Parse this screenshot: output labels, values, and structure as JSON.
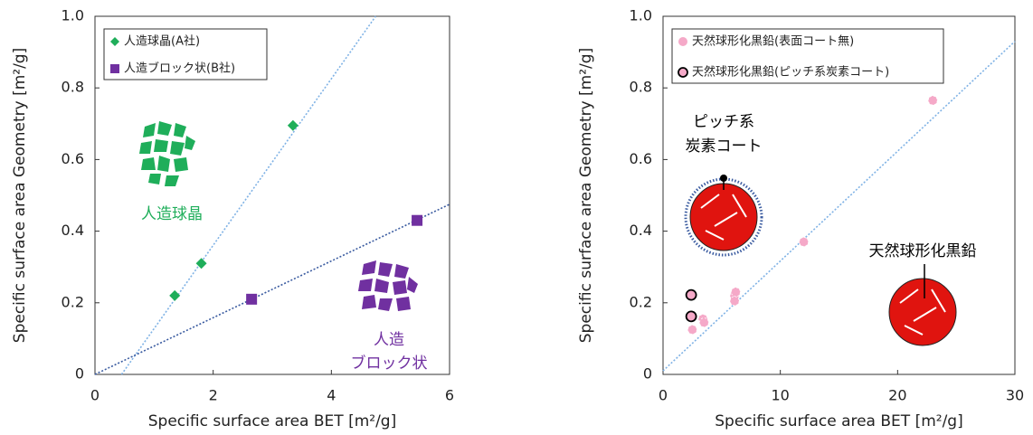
{
  "chart_data": [
    {
      "type": "scatter",
      "xlabel": "Specific surface area BET [m²/g]",
      "ylabel": "Specific surface area Geometry [m²/g]",
      "xlim": [
        0,
        6
      ],
      "ylim": [
        0,
        1
      ],
      "xticks": [
        0,
        2,
        4,
        6
      ],
      "yticks": [
        0,
        0.2,
        0.4,
        0.6,
        0.8,
        {
          "value": 1,
          "label": "1.0"
        }
      ],
      "legend": "upper left",
      "series": [
        {
          "name": "人造球晶(A社)",
          "color": "#1fae5a",
          "marker": "diamond",
          "x": [
            1.35,
            1.8,
            3.35
          ],
          "values": [
            0.22,
            0.31,
            0.695
          ]
        },
        {
          "name": "人造ブロック状(B社)",
          "color": "#7030a0",
          "marker": "square",
          "x": [
            2.65,
            5.45
          ],
          "values": [
            0.21,
            0.43
          ]
        }
      ],
      "trendlines": [
        {
          "color": "#7fb2e5",
          "x": [
            0.45,
            4.75
          ],
          "values": [
            0,
            1
          ]
        },
        {
          "color": "#3a5ba0",
          "x": [
            0,
            6
          ],
          "values": [
            0,
            0.475
          ]
        }
      ],
      "annotations": [
        {
          "lines": [
            "人造球晶"
          ],
          "color": "#1fae5a"
        },
        {
          "lines": [
            "人造",
            "ブロック状"
          ],
          "color": "#7030a0"
        }
      ]
    },
    {
      "type": "scatter",
      "xlabel": "Specific surface area BET [m²/g]",
      "ylabel": "Specific surface area Geometry [m²/g]",
      "xlim": [
        0,
        30
      ],
      "ylim": [
        0,
        1
      ],
      "xticks": [
        0,
        10,
        20,
        30
      ],
      "yticks": [
        0,
        0.2,
        0.4,
        0.6,
        0.8,
        {
          "value": 1,
          "label": "1.0"
        }
      ],
      "legend": "upper left",
      "series": [
        {
          "name": "天然球形化黒鉛(表面コート無)",
          "color": "#f5a9c8",
          "marker": "circle",
          "x": [
            2.5,
            3.4,
            3.5,
            6.1,
            6.2,
            6.1,
            12.0,
            23.0
          ],
          "values": [
            0.125,
            0.155,
            0.145,
            0.22,
            0.23,
            0.205,
            0.37,
            0.765
          ]
        },
        {
          "name": "天然球形化黒鉛(ピッチ系炭素コート)",
          "color": "#f5a9c8",
          "marker": "circle-outlined",
          "x": [
            2.4,
            2.4
          ],
          "values": [
            0.222,
            0.162
          ]
        }
      ],
      "trendlines": [
        {
          "color": "#7fb2e5",
          "x": [
            0,
            30
          ],
          "values": [
            0.01,
            0.93
          ]
        }
      ],
      "annotations": [
        {
          "lines": [
            "ピッチ系",
            "炭素コート"
          ],
          "color": "#000000"
        },
        {
          "lines": [
            "天然球形化黒鉛"
          ],
          "color": "#000000"
        }
      ]
    }
  ]
}
